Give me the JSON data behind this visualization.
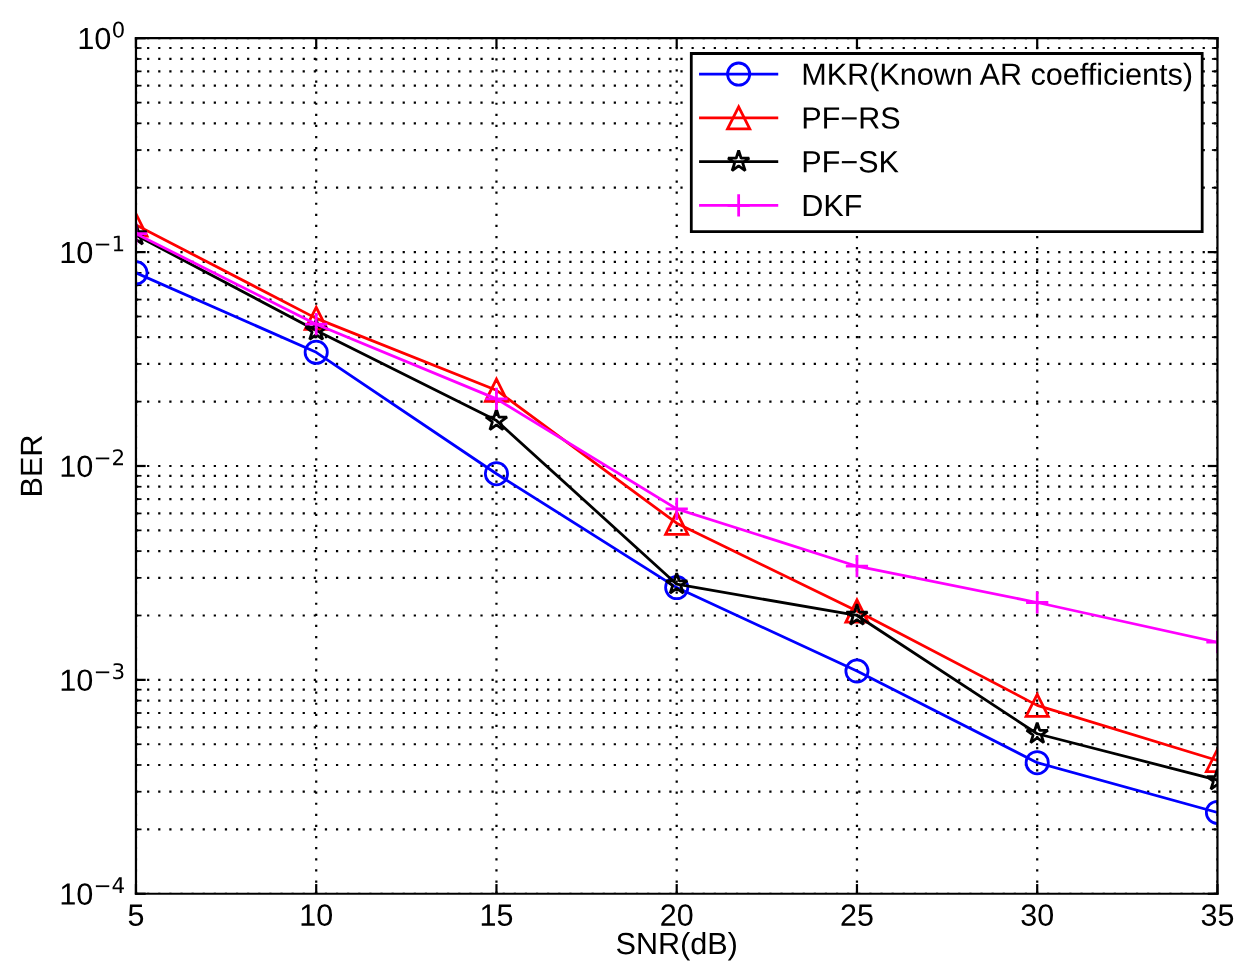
{
  "chart_data": {
    "type": "line",
    "xlabel": "SNR(dB)",
    "ylabel": "BER",
    "x": [
      5,
      10,
      15,
      20,
      25,
      30,
      35
    ],
    "series": [
      {
        "name": "MKR(Known AR coefficients)",
        "color": "#0000ff",
        "marker": "circle",
        "values": [
          0.08,
          0.034,
          0.0092,
          0.0027,
          0.0011,
          0.00041,
          0.00024
        ]
      },
      {
        "name": "PF−RS",
        "color": "#ff0000",
        "marker": "triangle",
        "values": [
          0.134,
          0.049,
          0.0226,
          0.0054,
          0.0021,
          0.00076,
          0.00042
        ]
      },
      {
        "name": "PF−SK",
        "color": "#000000",
        "marker": "star",
        "values": [
          0.12,
          0.043,
          0.0163,
          0.0028,
          0.002,
          0.00056,
          0.00034
        ]
      },
      {
        "name": "DKF",
        "color": "#ff00ff",
        "marker": "cross",
        "values": [
          0.122,
          0.046,
          0.0206,
          0.0063,
          0.0034,
          0.0023,
          0.0015
        ]
      }
    ],
    "log": "y",
    "xlim": [
      5,
      35
    ],
    "xticks": [
      5,
      10,
      15,
      20,
      25,
      30,
      35
    ],
    "ylim": [
      0.0001,
      1
    ],
    "yticks": [
      {
        "value": 0.0001,
        "label": "10$^{−4}$"
      },
      {
        "value": 0.001,
        "label": "10$^{−3}$"
      },
      {
        "value": 0.01,
        "label": "10$^{−2}$"
      },
      {
        "value": 0.1,
        "label": "10$^{−1}$"
      },
      {
        "value": 1,
        "label": "10$^{0}$"
      }
    ],
    "grid": true,
    "legend": "top right",
    "line_style": "solid"
  }
}
